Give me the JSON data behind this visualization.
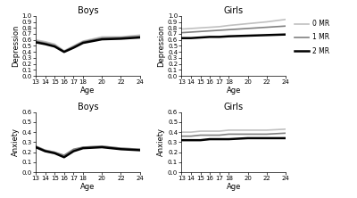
{
  "ages": [
    13,
    14,
    15,
    16,
    17,
    18,
    20,
    22,
    24
  ],
  "boys_depression": {
    "0MR": [
      0.6,
      0.57,
      0.53,
      0.42,
      0.5,
      0.58,
      0.65,
      0.65,
      0.68
    ],
    "1MR": [
      0.58,
      0.55,
      0.51,
      0.41,
      0.49,
      0.57,
      0.63,
      0.64,
      0.66
    ],
    "2MR": [
      0.56,
      0.53,
      0.49,
      0.4,
      0.47,
      0.55,
      0.61,
      0.62,
      0.64
    ]
  },
  "girls_depression": {
    "0MR": [
      0.78,
      0.79,
      0.8,
      0.81,
      0.82,
      0.84,
      0.87,
      0.9,
      0.94
    ],
    "1MR": [
      0.72,
      0.73,
      0.74,
      0.75,
      0.76,
      0.77,
      0.79,
      0.81,
      0.83
    ],
    "2MR": [
      0.63,
      0.63,
      0.64,
      0.65,
      0.65,
      0.66,
      0.67,
      0.68,
      0.69
    ]
  },
  "boys_anxiety": {
    "0MR": [
      0.26,
      0.22,
      0.2,
      0.16,
      0.22,
      0.25,
      0.26,
      0.24,
      0.23
    ],
    "1MR": [
      0.26,
      0.22,
      0.2,
      0.17,
      0.23,
      0.25,
      0.26,
      0.24,
      0.23
    ],
    "2MR": [
      0.25,
      0.21,
      0.19,
      0.15,
      0.21,
      0.24,
      0.25,
      0.23,
      0.22
    ]
  },
  "girls_anxiety": {
    "0MR": [
      0.4,
      0.4,
      0.41,
      0.41,
      0.41,
      0.42,
      0.42,
      0.42,
      0.43
    ],
    "1MR": [
      0.36,
      0.36,
      0.37,
      0.37,
      0.37,
      0.38,
      0.38,
      0.38,
      0.39
    ],
    "2MR": [
      0.32,
      0.32,
      0.32,
      0.33,
      0.33,
      0.33,
      0.34,
      0.34,
      0.34
    ]
  },
  "colors": {
    "0MR": "#c0c0c0",
    "1MR": "#808080",
    "2MR": "#000000"
  },
  "linewidths": {
    "0MR": 1.2,
    "1MR": 1.2,
    "2MR": 1.8
  },
  "depression_ylim": [
    0,
    1.0
  ],
  "depression_yticks": [
    0.0,
    0.1,
    0.2,
    0.3,
    0.4,
    0.5,
    0.6,
    0.7,
    0.8,
    0.9,
    1.0
  ],
  "anxiety_ylim": [
    0,
    0.6
  ],
  "anxiety_yticks": [
    0.0,
    0.1,
    0.2,
    0.3,
    0.4,
    0.5,
    0.6
  ],
  "xticks": [
    13,
    14,
    15,
    16,
    17,
    18,
    20,
    22,
    24
  ],
  "xlabel": "Age",
  "ylabel_depression": "Depression",
  "ylabel_anxiety": "Anxiety",
  "title_boys": "Boys",
  "title_girls": "Girls",
  "legend_labels": [
    "0 MR",
    "1 MR",
    "2 MR"
  ],
  "background_color": "#ffffff",
  "title_fontsize": 7,
  "label_fontsize": 6,
  "tick_fontsize": 5
}
